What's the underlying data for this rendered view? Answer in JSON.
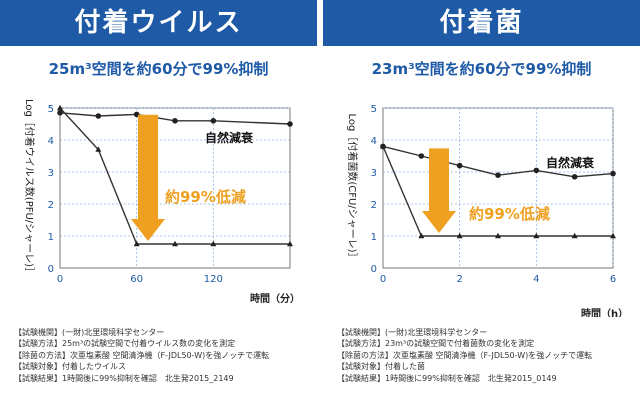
{
  "colors": {
    "banner": "#1f5aa6",
    "accent": "#1f5aa6",
    "arrow": "#f0a020",
    "reduction_text": "#f0a020",
    "line": "#333333"
  },
  "left": {
    "banner": "付着ウイルス",
    "subtitle_pre": "25",
    "subtitle_unit": "m³",
    "subtitle_post": "空間を約60分で99%抑制",
    "notes": [
      "【試験機関】(一財)北里環境科学センター",
      "【試験方法】25m³の試験空間で付着ウイルス数の変化を測定",
      "【除菌の方法】次亜塩素酸 空間清浄機（F-JDL50-W)を強ノッチで運転",
      "【試験対象】付着したウイルス",
      "【試験結果】1時間後に99%抑制を確認　北生発2015_2149"
    ]
  },
  "right": {
    "banner": "付着菌",
    "subtitle_pre": "23",
    "subtitle_unit": "m³",
    "subtitle_post": "空間を約60分で99%抑制",
    "notes": [
      "【試験機関】(一財)北里環境科学センター",
      "【試験方法】23m³の試験空間で付着菌数の変化を測定",
      "【除菌の方法】次亜塩素酸 空間清浄機（F-JDL50-W)を強ノッチで運転",
      "【試験対象】付着した菌",
      "【試験結果】1時間後に99%抑制を確認　北生発2015_0149"
    ]
  },
  "chart_data": [
    {
      "type": "line",
      "ylabel": "Log［付着ウイルス数(PFU/シャーレ)］",
      "xlabel": "時間（分）",
      "xlim": [
        0,
        180
      ],
      "ylim": [
        0,
        5
      ],
      "xticks": [
        0,
        60,
        120
      ],
      "yticks": [
        0,
        1,
        2,
        3,
        4,
        5
      ],
      "annotation_natural": "自然減衰",
      "annotation_reduction": "約99%低減",
      "series": [
        {
          "name": "自然減衰",
          "x": [
            0,
            30,
            60,
            90,
            120,
            180
          ],
          "y": [
            4.85,
            4.75,
            4.8,
            4.6,
            4.6,
            4.5
          ]
        },
        {
          "x": [
            0,
            30,
            60,
            90,
            120,
            180
          ],
          "y": [
            5.0,
            3.7,
            0.75,
            0.75,
            0.75,
            0.75
          ]
        }
      ]
    },
    {
      "type": "line",
      "ylabel": "Log［付着菌数(CFU/シャーレ)］",
      "xlabel": "時間（h）",
      "xlim": [
        0,
        6
      ],
      "ylim": [
        0,
        5
      ],
      "xticks": [
        0,
        2,
        4,
        6
      ],
      "yticks": [
        0,
        1,
        2,
        3,
        4,
        5
      ],
      "annotation_natural": "自然減衰",
      "annotation_reduction": "約99%低減",
      "series": [
        {
          "name": "自然減衰",
          "x": [
            0,
            1,
            2,
            3,
            4,
            5,
            6
          ],
          "y": [
            3.8,
            3.5,
            3.2,
            2.9,
            3.05,
            2.85,
            2.95
          ]
        },
        {
          "x": [
            0,
            1,
            2,
            3,
            4,
            5,
            6
          ],
          "y": [
            3.8,
            1.0,
            1.0,
            1.0,
            1.0,
            1.0,
            1.0
          ]
        }
      ]
    }
  ]
}
